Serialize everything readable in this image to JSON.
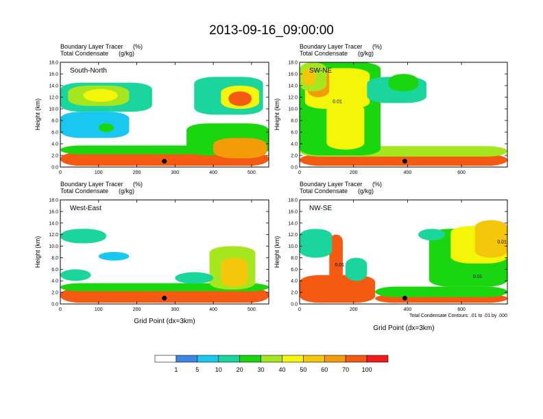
{
  "figure": {
    "title": "2013-09-16_09:00:00",
    "footnote": "Total Condensate Contours: .01 to .01 by .000"
  },
  "chart_data": [
    {
      "type": "heatmap",
      "panel": "South-North",
      "label": "South-North",
      "title_line1": "Boundary Layer Tracer",
      "title_unit1": "(%)",
      "title_line2": "Total Condensate",
      "title_unit2": "(g/kg)",
      "ylabel": "Height (km)",
      "xlabel": "",
      "xlim": [
        0,
        545
      ],
      "ylim": [
        0,
        18
      ],
      "xticks": [
        0,
        100,
        200,
        300,
        400,
        500
      ],
      "xtick_labels": [
        "0",
        "100",
        "200",
        "300",
        "400",
        "500"
      ],
      "yticks": [
        0,
        2,
        4,
        6,
        8,
        10,
        12,
        14,
        16,
        18
      ],
      "ytick_labels": [
        "0.0",
        "2.0",
        "4.0",
        "6.0",
        "8.0",
        "10.0",
        "12.0",
        "14.0",
        "16.0",
        "18.0"
      ],
      "marker": {
        "x": 272,
        "y": 1.0
      },
      "contour_labels": [],
      "blobs": [
        {
          "x": 0,
          "y": 0.2,
          "w": 545,
          "h": 2.4,
          "v": 85
        },
        {
          "x": 0,
          "y": 2.2,
          "w": 545,
          "h": 1.5,
          "v": 28
        },
        {
          "x": 330,
          "y": 2.0,
          "w": 215,
          "h": 5.5,
          "v": 22
        },
        {
          "x": 400,
          "y": 1.5,
          "w": 140,
          "h": 3.5,
          "v": 68
        },
        {
          "x": 0,
          "y": 9.5,
          "w": 240,
          "h": 5.0,
          "v": 12
        },
        {
          "x": 20,
          "y": 10.5,
          "w": 160,
          "h": 3.5,
          "v": 30
        },
        {
          "x": 60,
          "y": 11.2,
          "w": 90,
          "h": 2.2,
          "v": 48
        },
        {
          "x": 350,
          "y": 9.0,
          "w": 180,
          "h": 6.5,
          "v": 18
        },
        {
          "x": 420,
          "y": 10.0,
          "w": 100,
          "h": 4.0,
          "v": 48
        },
        {
          "x": 440,
          "y": 10.5,
          "w": 60,
          "h": 2.5,
          "v": 75
        },
        {
          "x": 0,
          "y": 5.0,
          "w": 180,
          "h": 4.5,
          "v": 8
        },
        {
          "x": 100,
          "y": 6.0,
          "w": 40,
          "h": 1.5,
          "v": 25
        }
      ]
    },
    {
      "type": "heatmap",
      "panel": "SW-NE",
      "label": "SW-NE",
      "title_line1": "Boundary Layer Tracer",
      "title_unit1": "(%)",
      "title_line2": "Total Condensate",
      "title_unit2": "(g/kg)",
      "ylabel": "Height (km)",
      "xlabel": "",
      "xlim": [
        0,
        770
      ],
      "ylim": [
        0,
        18
      ],
      "xticks": [
        0,
        200,
        400,
        600
      ],
      "xtick_labels": [
        "0",
        "200",
        "400",
        "600"
      ],
      "yticks": [
        0,
        2,
        4,
        6,
        8,
        10,
        12,
        14,
        16,
        18
      ],
      "ytick_labels": [
        "0.0",
        "2.0",
        "4.0",
        "6.0",
        "8.0",
        "10.0",
        "12.0",
        "14.0",
        "16.0",
        "18.0"
      ],
      "marker": {
        "x": 390,
        "y": 1.0
      },
      "contour_labels": [
        {
          "x": 140,
          "y": 11.0,
          "text": "0.01"
        }
      ],
      "blobs": [
        {
          "x": 0,
          "y": 0.2,
          "w": 770,
          "h": 2.0,
          "v": 85
        },
        {
          "x": 0,
          "y": 1.8,
          "w": 770,
          "h": 1.8,
          "v": 30
        },
        {
          "x": 0,
          "y": 2.0,
          "w": 300,
          "h": 16.0,
          "v": 25
        },
        {
          "x": 20,
          "y": 10.0,
          "w": 240,
          "h": 7.0,
          "v": 45
        },
        {
          "x": 30,
          "y": 12.0,
          "w": 80,
          "h": 5.0,
          "v": 65
        },
        {
          "x": 100,
          "y": 3.0,
          "w": 140,
          "h": 8.0,
          "v": 40
        },
        {
          "x": 250,
          "y": 11.0,
          "w": 220,
          "h": 4.5,
          "v": 15
        },
        {
          "x": 330,
          "y": 13.0,
          "w": 110,
          "h": 3.0,
          "v": 28
        },
        {
          "x": 0,
          "y": 13.0,
          "w": 100,
          "h": 5.0,
          "v": 35
        },
        {
          "x": 10,
          "y": 14.0,
          "w": 50,
          "h": 3.0,
          "v": 55
        }
      ]
    },
    {
      "type": "heatmap",
      "panel": "West-East",
      "label": "West-East",
      "title_line1": "Boundary Layer Tracer",
      "title_unit1": "(%)",
      "title_line2": "Total Condensate",
      "title_unit2": "(g/kg)",
      "ylabel": "Height (km)",
      "xlabel": "Grid Point (dx=3km)",
      "xlim": [
        0,
        545
      ],
      "ylim": [
        0,
        18
      ],
      "xticks": [
        0,
        100,
        200,
        300,
        400,
        500
      ],
      "xtick_labels": [
        "0",
        "100",
        "200",
        "300",
        "400",
        "500"
      ],
      "yticks": [
        0,
        2,
        4,
        6,
        8,
        10,
        12,
        14,
        16,
        18
      ],
      "ytick_labels": [
        "0.0",
        "2.0",
        "4.0",
        "6.0",
        "8.0",
        "10.0",
        "12.0",
        "14.0",
        "16.0",
        "18.0"
      ],
      "marker": {
        "x": 272,
        "y": 1.0
      },
      "contour_labels": [],
      "blobs": [
        {
          "x": 0,
          "y": 0.2,
          "w": 545,
          "h": 2.6,
          "v": 88
        },
        {
          "x": 0,
          "y": 2.2,
          "w": 545,
          "h": 1.4,
          "v": 28
        },
        {
          "x": 390,
          "y": 2.5,
          "w": 120,
          "h": 7.5,
          "v": 30
        },
        {
          "x": 420,
          "y": 3.0,
          "w": 70,
          "h": 5.0,
          "v": 50
        },
        {
          "x": 0,
          "y": 10.5,
          "w": 120,
          "h": 2.5,
          "v": 10
        },
        {
          "x": 100,
          "y": 7.5,
          "w": 80,
          "h": 1.5,
          "v": 8
        },
        {
          "x": 0,
          "y": 4.0,
          "w": 80,
          "h": 2.0,
          "v": 10
        },
        {
          "x": 300,
          "y": 3.5,
          "w": 100,
          "h": 2.0,
          "v": 12
        }
      ]
    },
    {
      "type": "heatmap",
      "panel": "NW-SE",
      "label": "NW-SE",
      "title_line1": "Boundary Layer Tracer",
      "title_unit1": "(%)",
      "title_line2": "Total Condensate",
      "title_unit2": "(g/kg)",
      "ylabel": "Height (km)",
      "xlabel": "Grid Point (dx=3km)",
      "xlim": [
        0,
        770
      ],
      "ylim": [
        0,
        18
      ],
      "xticks": [
        0,
        200,
        400,
        600
      ],
      "xtick_labels": [
        "0",
        "200",
        "400",
        "600"
      ],
      "yticks": [
        0,
        2,
        4,
        6,
        8,
        10,
        12,
        14,
        16,
        18
      ],
      "ytick_labels": [
        "0.0",
        "2.0",
        "4.0",
        "6.0",
        "8.0",
        "10.0",
        "12.0",
        "14.0",
        "16.0",
        "18.0"
      ],
      "marker": {
        "x": 390,
        "y": 1.0
      },
      "contour_labels": [
        {
          "x": 750,
          "y": 10.5,
          "text": "0.01"
        },
        {
          "x": 148,
          "y": 6.5,
          "text": "0.01"
        },
        {
          "x": 660,
          "y": 4.5,
          "text": "0.01"
        }
      ],
      "blobs": [
        {
          "x": 0,
          "y": 0.2,
          "w": 280,
          "h": 4.8,
          "v": 80
        },
        {
          "x": 280,
          "y": 0.2,
          "w": 490,
          "h": 1.5,
          "v": 72
        },
        {
          "x": 280,
          "y": 1.2,
          "w": 490,
          "h": 1.8,
          "v": 28
        },
        {
          "x": 110,
          "y": 0.5,
          "w": 50,
          "h": 11.5,
          "v": 90
        },
        {
          "x": 0,
          "y": 8.0,
          "w": 120,
          "h": 5.0,
          "v": 14
        },
        {
          "x": 170,
          "y": 4.0,
          "w": 80,
          "h": 4.0,
          "v": 12
        },
        {
          "x": 480,
          "y": 3.0,
          "w": 290,
          "h": 10.0,
          "v": 25
        },
        {
          "x": 560,
          "y": 7.0,
          "w": 210,
          "h": 6.5,
          "v": 40
        },
        {
          "x": 650,
          "y": 8.0,
          "w": 120,
          "h": 6.5,
          "v": 55
        },
        {
          "x": 440,
          "y": 11.0,
          "w": 100,
          "h": 2.0,
          "v": 10
        }
      ]
    }
  ],
  "colorbar": {
    "levels": [
      "1",
      "5",
      "10",
      "20",
      "30",
      "40",
      "50",
      "60",
      "70",
      "100"
    ],
    "colors": [
      "#ffffff",
      "#3a87e8",
      "#19c7f0",
      "#1ad69c",
      "#19d60f",
      "#a6e61f",
      "#f5f50a",
      "#f5c70a",
      "#f59b0a",
      "#f55a12",
      "#f51a1a"
    ]
  }
}
